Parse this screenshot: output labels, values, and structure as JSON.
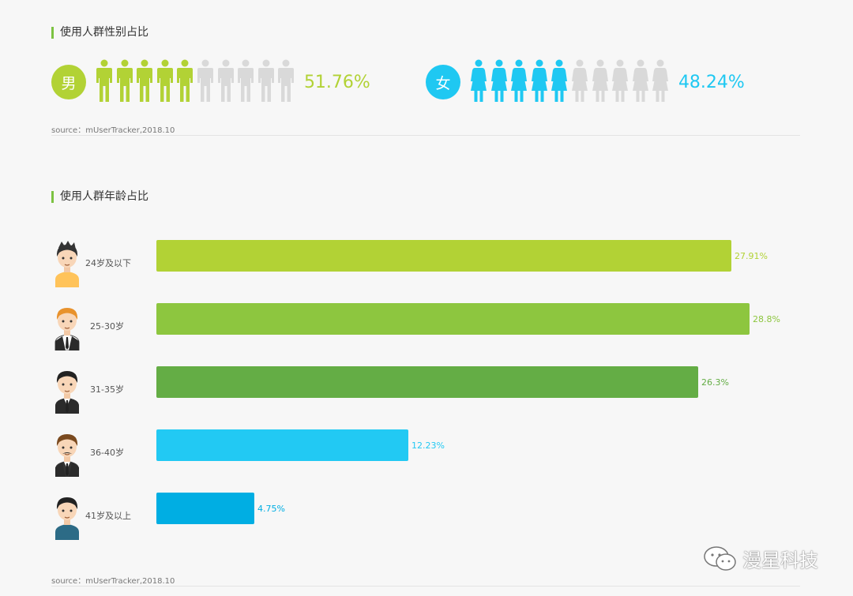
{
  "gender_section": {
    "title": "使用人群性别占比",
    "source": "source：mUserTracker,2018.10",
    "male": {
      "label": "男",
      "percent": "51.76%",
      "color": "#b2d235",
      "filled": 5,
      "total": 10
    },
    "female": {
      "label": "女",
      "percent": "48.24%",
      "color": "#1fc8f2",
      "filled": 5,
      "total": 10
    }
  },
  "age_section": {
    "title": "使用人群年龄占比",
    "source": "source：mUserTracker,2018.10"
  },
  "chart_data": {
    "type": "bar",
    "orientation": "horizontal",
    "categories": [
      "24岁及以下",
      "25-30岁",
      "31-35岁",
      "36-40岁",
      "41岁及以上"
    ],
    "values": [
      27.91,
      28.8,
      26.3,
      12.23,
      4.75
    ],
    "value_labels": [
      "27.91%",
      "28.8%",
      "26.3%",
      "12.23%",
      "4.75%"
    ],
    "colors": [
      "#b2d235",
      "#8dc63f",
      "#64ad45",
      "#22c9f3",
      "#00aee3"
    ],
    "title": "使用人群年龄占比",
    "xlim": [
      0,
      29
    ]
  },
  "watermark": {
    "text": "漫星科技",
    "icon": "wechat-icon"
  }
}
